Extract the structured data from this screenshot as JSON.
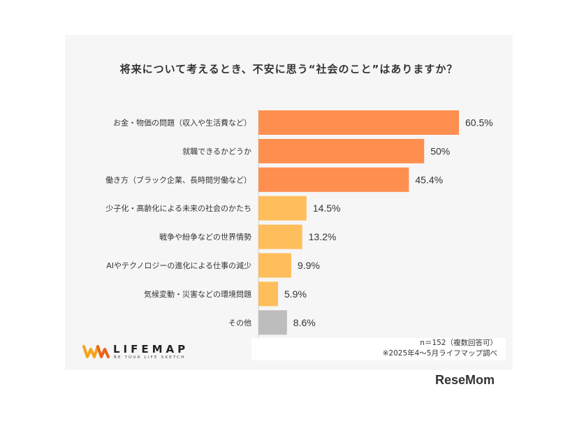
{
  "chart_data": {
    "type": "bar",
    "orientation": "horizontal",
    "title": "将来について考えるとき、不安に思う“社会のこと”はありますか？",
    "categories": [
      "お金・物価の問題（収入や生活費など）",
      "就職できるかどうか",
      "働き方（ブラック企業、長時間労働など）",
      "少子化・高齢化による未来の社会のかたち",
      "戦争や紛争などの世界情勢",
      "AIやテクノロジーの進化による仕事の減少",
      "気候変動・災害などの環境問題",
      "その他"
    ],
    "values": [
      60.5,
      50,
      45.4,
      14.5,
      13.2,
      9.9,
      5.9,
      8.6
    ],
    "value_labels": [
      "60.5%",
      "50%",
      "45.4%",
      "14.5%",
      "13.2%",
      "9.9%",
      "5.9%",
      "8.6%"
    ],
    "colors": [
      "#ff8f4f",
      "#ff8f4f",
      "#ff8f4f",
      "#ffbe5c",
      "#ffbe5c",
      "#ffbe5c",
      "#ffbe5c",
      "#bdbdbd"
    ],
    "xlim": [
      0,
      100
    ],
    "grid": false,
    "legend": "none"
  },
  "footnote": {
    "sample": "n＝152（複数回答可）",
    "survey": "※2025年4～5月ライフマップ調べ"
  },
  "brand": {
    "name": "LIFEMAP",
    "tagline": "BE YOUR LIFE SKETCH",
    "mark_colors": [
      "#f7a21b",
      "#e8651a"
    ]
  },
  "source_logo": "ReseMom"
}
